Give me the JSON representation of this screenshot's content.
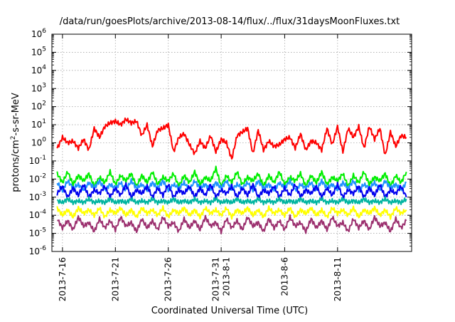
{
  "chart_data": {
    "type": "line",
    "title": "/data/run/goesPlots/archive/2013-08-14/flux/../flux/31daysMoonFluxes.txt",
    "xlabel": "Coordinated Universal Time (UTC)",
    "ylabel": {
      "prefix": "protons/cm",
      "sup": "2",
      "suffix": "-s-sr-MeV"
    },
    "log_scale_y": true,
    "ylim_exponent": [
      -6,
      6
    ],
    "y_ticks": [
      {
        "base": "10",
        "exp": "-6"
      },
      {
        "base": "10",
        "exp": "-5"
      },
      {
        "base": "10",
        "exp": "-4"
      },
      {
        "base": "10",
        "exp": "-3"
      },
      {
        "base": "10",
        "exp": "-2"
      },
      {
        "base": "10",
        "exp": "-1"
      },
      {
        "base": "10",
        "exp": "0"
      },
      {
        "base": "10",
        "exp": "1"
      },
      {
        "base": "10",
        "exp": "2"
      },
      {
        "base": "10",
        "exp": "3"
      },
      {
        "base": "10",
        "exp": "4"
      },
      {
        "base": "10",
        "exp": "5"
      },
      {
        "base": "10",
        "exp": "6"
      }
    ],
    "x_range_days": [
      0,
      34
    ],
    "x_ticks": [
      {
        "day": 1.0,
        "lines": [
          "2013-7-16"
        ]
      },
      {
        "day": 6.0,
        "lines": [
          "2013-7-21"
        ]
      },
      {
        "day": 11.0,
        "lines": [
          "2013-7-26"
        ]
      },
      {
        "day": 16.0,
        "lines": [
          "2013-7-31",
          "2013-8-1"
        ]
      },
      {
        "day": 22.0,
        "lines": [
          "2013-8-6"
        ]
      },
      {
        "day": 27.0,
        "lines": [
          "2013-8-11"
        ]
      }
    ],
    "grid": true,
    "series": [
      {
        "color": "#ff0000",
        "x": [
          0.5,
          1.0,
          1.5,
          2.0,
          2.5,
          3.0,
          3.5,
          4.0,
          4.5,
          5.0,
          5.5,
          6.0,
          6.5,
          7.0,
          7.5,
          8.0,
          8.5,
          9.0,
          9.5,
          10.0,
          10.5,
          11.0,
          11.5,
          12.0,
          12.5,
          13.0,
          13.5,
          14.0,
          14.5,
          15.0,
          15.5,
          16.0,
          16.5,
          17.0,
          17.5,
          18.0,
          18.5,
          19.0,
          19.5,
          20.0,
          20.5,
          21.0,
          21.5,
          22.0,
          22.5,
          23.0,
          23.5,
          24.0,
          24.5,
          25.0,
          25.5,
          26.0,
          26.5,
          27.0,
          27.5,
          28.0,
          28.5,
          29.0,
          29.5,
          30.0,
          30.5,
          31.0,
          31.5,
          32.0,
          32.5,
          33.0,
          33.5
        ],
        "y_exp": [
          -0.3,
          0.3,
          0.0,
          0.1,
          -0.3,
          0.2,
          -0.4,
          0.8,
          0.3,
          0.9,
          1.1,
          1.2,
          1.0,
          1.3,
          1.1,
          1.2,
          0.4,
          1.0,
          -0.2,
          0.7,
          0.8,
          1.0,
          -0.5,
          0.3,
          0.5,
          -0.1,
          -0.6,
          0.1,
          -0.3,
          0.4,
          -0.5,
          0.2,
          0.0,
          -0.9,
          0.4,
          0.6,
          0.8,
          -0.6,
          0.7,
          -0.4,
          0.1,
          -0.2,
          -0.1,
          0.2,
          0.3,
          -0.3,
          0.5,
          -0.4,
          0.1,
          0.0,
          -0.4,
          0.8,
          -0.1,
          0.9,
          -0.5,
          0.8,
          0.3,
          0.9,
          -0.3,
          0.9,
          0.2,
          0.8,
          -0.7,
          0.6,
          -0.2,
          0.4,
          0.3
        ]
      },
      {
        "color": "#00ee00",
        "x": [
          0.5,
          1.0,
          1.5,
          2.0,
          2.5,
          3.0,
          3.5,
          4.0,
          4.5,
          5.0,
          5.5,
          6.0,
          6.5,
          7.0,
          7.5,
          8.0,
          8.5,
          9.0,
          9.5,
          10.0,
          10.5,
          11.0,
          11.5,
          12.0,
          12.5,
          13.0,
          13.5,
          14.0,
          14.5,
          15.0,
          15.5,
          16.0,
          16.5,
          17.0,
          17.5,
          18.0,
          18.5,
          19.0,
          19.5,
          20.0,
          20.5,
          21.0,
          21.5,
          22.0,
          22.5,
          23.0,
          23.5,
          24.0,
          24.5,
          25.0,
          25.5,
          26.0,
          26.5,
          27.0,
          27.5,
          28.0,
          28.5,
          29.0,
          29.5,
          30.0,
          30.5,
          31.0,
          31.5,
          32.0,
          32.5,
          33.0,
          33.5
        ],
        "y_exp": [
          -1.7,
          -2.2,
          -1.6,
          -2.3,
          -1.8,
          -2.1,
          -1.7,
          -2.4,
          -1.9,
          -2.2,
          -1.6,
          -2.3,
          -1.8,
          -2.1,
          -1.7,
          -2.4,
          -1.8,
          -2.2,
          -1.6,
          -2.3,
          -1.9,
          -2.1,
          -1.7,
          -2.4,
          -1.8,
          -2.2,
          -1.6,
          -2.3,
          -1.9,
          -2.1,
          -1.4,
          -2.4,
          -1.8,
          -2.2,
          -1.6,
          -2.3,
          -1.9,
          -2.1,
          -1.7,
          -2.4,
          -1.8,
          -2.2,
          -1.6,
          -2.3,
          -1.9,
          -2.1,
          -1.7,
          -2.4,
          -1.8,
          -2.2,
          -1.6,
          -2.3,
          -1.9,
          -2.1,
          -1.7,
          -2.4,
          -1.8,
          -2.2,
          -1.6,
          -2.3,
          -1.9,
          -2.1,
          -1.7,
          -2.4,
          -1.8,
          -2.2,
          -1.6
        ]
      },
      {
        "color": "#1e90ff",
        "x": [
          0.5,
          1.0,
          1.5,
          2.0,
          2.5,
          3.0,
          3.5,
          4.0,
          4.5,
          5.0,
          5.5,
          6.0,
          6.5,
          7.0,
          7.5,
          8.0,
          8.5,
          9.0,
          9.5,
          10.0,
          10.5,
          11.0,
          11.5,
          12.0,
          12.5,
          13.0,
          13.5,
          14.0,
          14.5,
          15.0,
          15.5,
          16.0,
          16.5,
          17.0,
          17.5,
          18.0,
          18.5,
          19.0,
          19.5,
          20.0,
          20.5,
          21.0,
          21.5,
          22.0,
          22.5,
          23.0,
          23.5,
          24.0,
          24.5,
          25.0,
          25.5,
          26.0,
          26.5,
          27.0,
          27.5,
          28.0,
          28.5,
          29.0,
          29.5,
          30.0,
          30.5,
          31.0,
          31.5,
          32.0,
          32.5,
          33.0,
          33.5
        ],
        "y_exp": [
          -2.2,
          -2.6,
          -2.1,
          -2.5,
          -2.3,
          -2.6,
          -2.2,
          -2.5,
          -2.1,
          -2.6,
          -2.3,
          -2.5,
          -2.2,
          -2.6,
          -2.1,
          -2.5,
          -2.3,
          -2.6,
          -2.2,
          -2.5,
          -2.1,
          -2.6,
          -2.3,
          -2.5,
          -2.2,
          -2.6,
          -2.1,
          -2.5,
          -2.3,
          -2.6,
          -2.2,
          -2.5,
          -2.1,
          -2.6,
          -2.3,
          -2.5,
          -2.2,
          -2.6,
          -2.1,
          -2.5,
          -2.3,
          -2.6,
          -2.2,
          -2.5,
          -2.1,
          -2.6,
          -2.3,
          -2.5,
          -2.2,
          -2.6,
          -2.1,
          -2.5,
          -2.3,
          -2.6,
          -2.2,
          -2.5,
          -2.1,
          -2.6,
          -2.3,
          -2.5,
          -2.2,
          -2.6,
          -2.1,
          -2.5,
          -2.3,
          -2.6,
          -2.2
        ]
      },
      {
        "color": "#0000ee",
        "x": [
          0.5,
          1.0,
          1.5,
          2.0,
          2.5,
          3.0,
          3.5,
          4.0,
          4.5,
          5.0,
          5.5,
          6.0,
          6.5,
          7.0,
          7.5,
          8.0,
          8.5,
          9.0,
          9.5,
          10.0,
          10.5,
          11.0,
          11.5,
          12.0,
          12.5,
          13.0,
          13.5,
          14.0,
          14.5,
          15.0,
          15.5,
          16.0,
          16.5,
          17.0,
          17.5,
          18.0,
          18.5,
          19.0,
          19.5,
          20.0,
          20.5,
          21.0,
          21.5,
          22.0,
          22.5,
          23.0,
          23.5,
          24.0,
          24.5,
          25.0,
          25.5,
          26.0,
          26.5,
          27.0,
          27.5,
          28.0,
          28.5,
          29.0,
          29.5,
          30.0,
          30.5,
          31.0,
          31.5,
          32.0,
          32.5,
          33.0,
          33.5
        ],
        "y_exp": [
          -2.8,
          -2.4,
          -3.0,
          -2.5,
          -2.9,
          -2.3,
          -3.0,
          -2.6,
          -2.8,
          -2.4,
          -3.0,
          -2.5,
          -2.9,
          -2.3,
          -3.0,
          -2.6,
          -2.8,
          -2.4,
          -3.0,
          -2.5,
          -2.9,
          -2.3,
          -3.0,
          -2.6,
          -2.8,
          -2.4,
          -3.0,
          -2.5,
          -2.9,
          -2.3,
          -3.0,
          -2.6,
          -2.8,
          -2.4,
          -3.0,
          -2.5,
          -2.9,
          -2.3,
          -3.0,
          -2.6,
          -2.8,
          -2.4,
          -3.0,
          -2.5,
          -2.9,
          -2.3,
          -3.0,
          -2.6,
          -2.8,
          -2.4,
          -3.0,
          -2.5,
          -2.9,
          -2.3,
          -3.0,
          -2.6,
          -2.8,
          -2.4,
          -3.0,
          -2.5,
          -2.9,
          -2.3,
          -3.0,
          -2.6,
          -2.8,
          -2.4,
          -3.0
        ]
      },
      {
        "color": "#00b4a0",
        "x": [
          0.5,
          1.0,
          1.5,
          2.0,
          2.5,
          3.0,
          3.5,
          4.0,
          4.5,
          5.0,
          5.5,
          6.0,
          6.5,
          7.0,
          7.5,
          8.0,
          8.5,
          9.0,
          9.5,
          10.0,
          10.5,
          11.0,
          11.5,
          12.0,
          12.5,
          13.0,
          13.5,
          14.0,
          14.5,
          15.0,
          15.5,
          16.0,
          16.5,
          17.0,
          17.5,
          18.0,
          18.5,
          19.0,
          19.5,
          20.0,
          20.5,
          21.0,
          21.5,
          22.0,
          22.5,
          23.0,
          23.5,
          24.0,
          24.5,
          25.0,
          25.5,
          26.0,
          26.5,
          27.0,
          27.5,
          28.0,
          28.5,
          29.0,
          29.5,
          30.0,
          30.5,
          31.0,
          31.5,
          32.0,
          32.5,
          33.0,
          33.5
        ],
        "y_exp": [
          -3.2,
          -3.3,
          -3.1,
          -3.3,
          -3.2,
          -3.3,
          -3.1,
          -3.3,
          -3.2,
          -3.3,
          -3.1,
          -3.3,
          -3.2,
          -3.3,
          -3.1,
          -3.3,
          -3.2,
          -3.3,
          -3.1,
          -3.3,
          -3.2,
          -3.3,
          -3.1,
          -3.3,
          -3.2,
          -3.3,
          -3.1,
          -3.3,
          -3.2,
          -3.3,
          -3.1,
          -3.3,
          -3.2,
          -3.3,
          -3.1,
          -3.3,
          -3.2,
          -3.3,
          -3.1,
          -3.3,
          -3.2,
          -3.3,
          -3.1,
          -3.3,
          -3.2,
          -3.3,
          -3.1,
          -3.3,
          -3.2,
          -3.3,
          -3.1,
          -3.3,
          -3.2,
          -3.3,
          -3.1,
          -3.3,
          -3.2,
          -3.3,
          -3.1,
          -3.3,
          -3.2,
          -3.3,
          -3.1,
          -3.3,
          -3.2,
          -3.3,
          -3.1
        ]
      },
      {
        "color": "#ffff00",
        "x": [
          0.5,
          1.0,
          1.5,
          2.0,
          2.5,
          3.0,
          3.5,
          4.0,
          4.5,
          5.0,
          5.5,
          6.0,
          6.5,
          7.0,
          7.5,
          8.0,
          8.5,
          9.0,
          9.5,
          10.0,
          10.5,
          11.0,
          11.5,
          12.0,
          12.5,
          13.0,
          13.5,
          14.0,
          14.5,
          15.0,
          15.5,
          16.0,
          16.5,
          17.0,
          17.5,
          18.0,
          18.5,
          19.0,
          19.5,
          20.0,
          20.5,
          21.0,
          21.5,
          22.0,
          22.5,
          23.0,
          23.5,
          24.0,
          24.5,
          25.0,
          25.5,
          26.0,
          26.5,
          27.0,
          27.5,
          28.0,
          28.5,
          29.0,
          29.5,
          30.0,
          30.5,
          31.0,
          31.5,
          32.0,
          32.5,
          33.0,
          33.5
        ],
        "y_exp": [
          -3.6,
          -4.0,
          -3.7,
          -4.1,
          -3.6,
          -3.9,
          -3.7,
          -4.0,
          -3.6,
          -4.1,
          -3.7,
          -3.9,
          -3.6,
          -4.0,
          -3.7,
          -4.1,
          -3.6,
          -3.9,
          -3.7,
          -4.0,
          -3.6,
          -4.1,
          -3.7,
          -3.9,
          -3.6,
          -4.0,
          -3.7,
          -4.1,
          -3.6,
          -3.9,
          -3.7,
          -4.0,
          -3.6,
          -4.1,
          -3.7,
          -3.9,
          -3.6,
          -4.0,
          -3.7,
          -4.1,
          -3.6,
          -3.9,
          -3.7,
          -4.0,
          -3.6,
          -4.1,
          -3.7,
          -3.9,
          -3.6,
          -4.0,
          -3.7,
          -4.1,
          -3.6,
          -3.9,
          -3.7,
          -4.0,
          -3.6,
          -4.1,
          -3.7,
          -3.9,
          -3.6,
          -4.0,
          -3.7,
          -4.1,
          -3.6,
          -3.9,
          -3.7
        ]
      },
      {
        "color": "#9b2f6e",
        "x": [
          0.5,
          1.0,
          1.5,
          2.0,
          2.5,
          3.0,
          3.5,
          4.0,
          4.5,
          5.0,
          5.5,
          6.0,
          6.5,
          7.0,
          7.5,
          8.0,
          8.5,
          9.0,
          9.5,
          10.0,
          10.5,
          11.0,
          11.5,
          12.0,
          12.5,
          13.0,
          13.5,
          14.0,
          14.5,
          15.0,
          15.5,
          16.0,
          16.5,
          17.0,
          17.5,
          18.0,
          18.5,
          19.0,
          19.5,
          20.0,
          20.5,
          21.0,
          21.5,
          22.0,
          22.5,
          23.0,
          23.5,
          24.0,
          24.5,
          25.0,
          25.5,
          26.0,
          26.5,
          27.0,
          27.5,
          28.0,
          28.5,
          29.0,
          29.5,
          30.0,
          30.5,
          31.0,
          31.5,
          32.0,
          32.5,
          33.0,
          33.5
        ],
        "y_exp": [
          -4.2,
          -4.7,
          -4.3,
          -4.8,
          -4.1,
          -4.6,
          -4.4,
          -4.9,
          -4.2,
          -4.7,
          -4.3,
          -4.8,
          -4.1,
          -4.6,
          -4.4,
          -4.9,
          -4.2,
          -4.7,
          -4.3,
          -4.8,
          -4.1,
          -4.6,
          -4.4,
          -4.9,
          -4.2,
          -4.7,
          -4.3,
          -4.8,
          -4.1,
          -4.6,
          -4.4,
          -4.9,
          -4.2,
          -4.7,
          -4.3,
          -4.8,
          -4.1,
          -4.6,
          -4.4,
          -4.9,
          -4.2,
          -4.7,
          -4.3,
          -4.8,
          -4.1,
          -4.6,
          -4.4,
          -4.9,
          -4.2,
          -4.7,
          -4.3,
          -4.8,
          -4.1,
          -4.6,
          -4.4,
          -4.9,
          -4.2,
          -4.7,
          -4.3,
          -4.8,
          -4.1,
          -4.6,
          -4.4,
          -4.9,
          -4.2,
          -4.7,
          -4.3
        ]
      }
    ]
  }
}
